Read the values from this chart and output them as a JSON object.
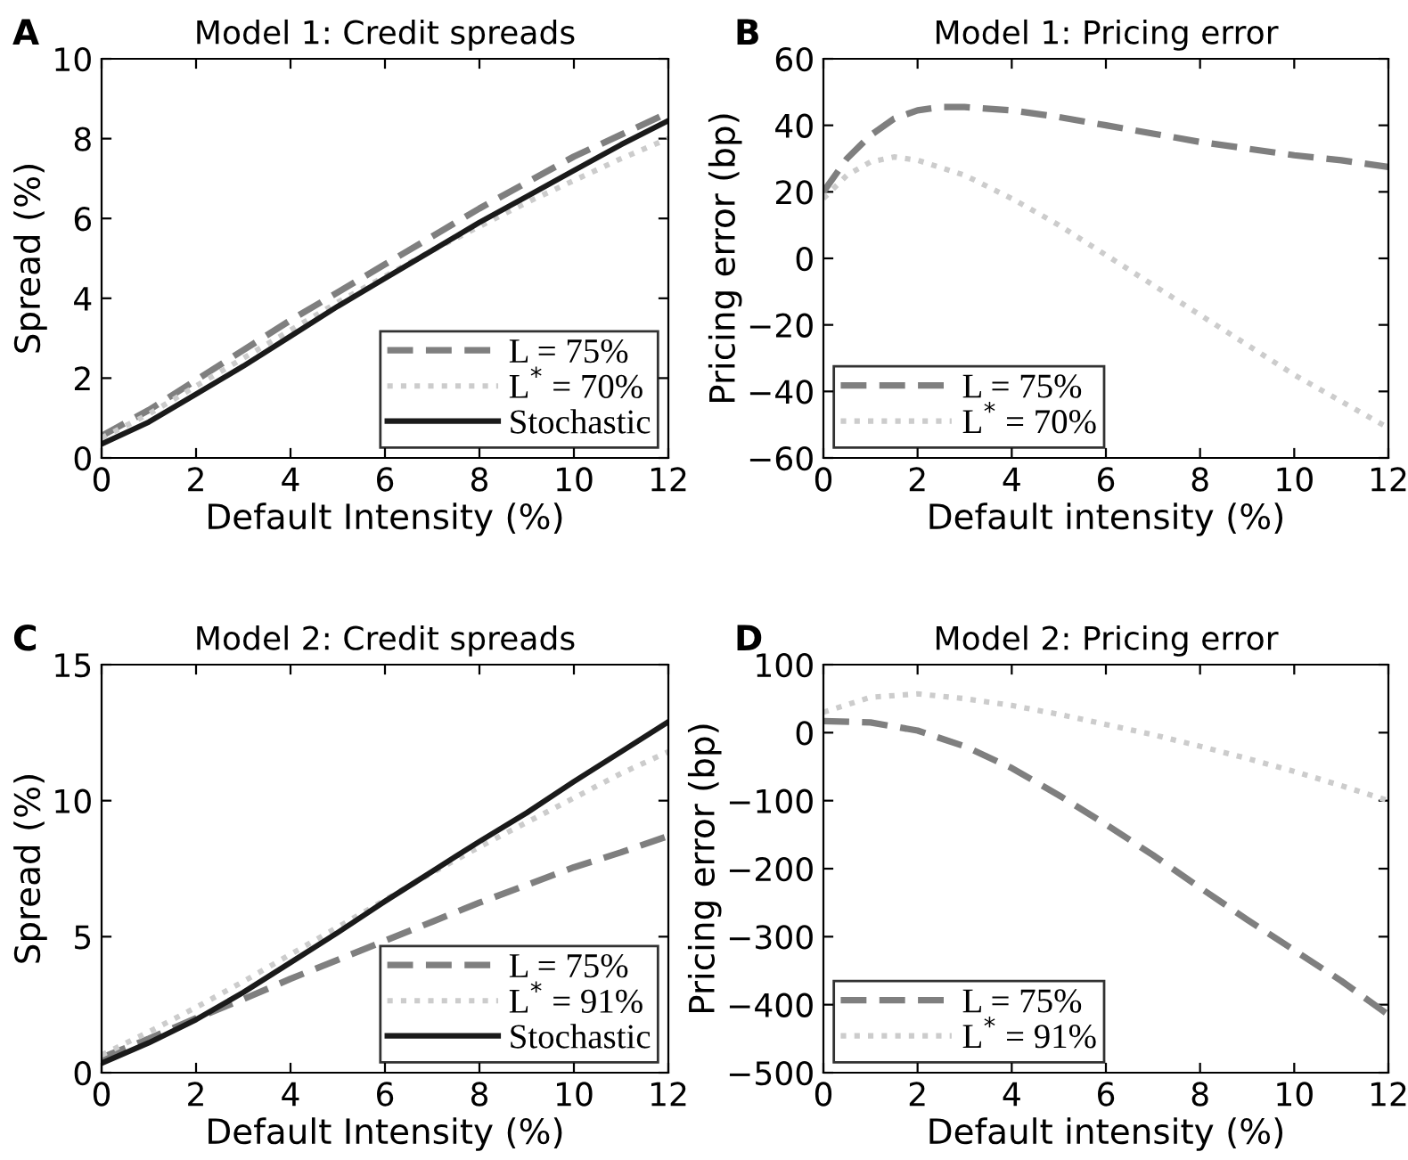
{
  "chart_data": [
    {
      "type": "line",
      "title": "Model 1: Credit spreads",
      "xlabel": "Default Intensity (%)",
      "ylabel": "Spread (%)",
      "annotations": [
        "A"
      ],
      "x": [
        0,
        1,
        2,
        3,
        4,
        5,
        6,
        7,
        8,
        9,
        10,
        11,
        12
      ],
      "xlim": [
        0,
        12
      ],
      "xticks": [
        0,
        2,
        4,
        6,
        8,
        10,
        12
      ],
      "ylim": [
        0,
        10
      ],
      "yticks": [
        0,
        2,
        4,
        6,
        8,
        10
      ],
      "grid": false,
      "legend": "bottom right",
      "series": [
        {
          "name": "L = 75%",
          "color": "#7f7f7f",
          "line_style": "dashed",
          "values": [
            0.55,
            1.2,
            1.95,
            2.7,
            3.45,
            4.15,
            4.85,
            5.55,
            6.25,
            6.9,
            7.55,
            8.1,
            8.65
          ]
        },
        {
          "name": "L$^{*}$ = 70%",
          "color": "#cccccc",
          "line_style": "dotted",
          "values": [
            0.5,
            1.1,
            1.8,
            2.5,
            3.2,
            3.9,
            4.55,
            5.2,
            5.8,
            6.4,
            6.95,
            7.5,
            8.0
          ]
        },
        {
          "name": "Stochastic",
          "color": "#1a1a1a",
          "line_style": "solid",
          "values": [
            0.35,
            0.9,
            1.6,
            2.3,
            3.05,
            3.8,
            4.5,
            5.2,
            5.9,
            6.55,
            7.2,
            7.85,
            8.45
          ]
        }
      ]
    },
    {
      "type": "line",
      "title": "Model 1: Pricing error",
      "xlabel": "Default intensity (%)",
      "ylabel": "Pricing error (bp)",
      "annotations": [
        "B"
      ],
      "xlim": [
        0,
        12
      ],
      "xticks": [
        0,
        2,
        4,
        6,
        8,
        10,
        12
      ],
      "ylim": [
        -60,
        60
      ],
      "yticks": [
        -60,
        -40,
        -20,
        0,
        20,
        40,
        60
      ],
      "grid": false,
      "legend": "bottom left",
      "series": [
        {
          "name": "L = 75%",
          "color": "#7f7f7f",
          "line_style": "dashed",
          "x": [
            0,
            0.5,
            1,
            1.5,
            2,
            2.5,
            3,
            4,
            5,
            6,
            7,
            8,
            9,
            10,
            11,
            12
          ],
          "values": [
            20,
            30,
            37,
            42,
            44.5,
            45.5,
            45.5,
            44.5,
            42.5,
            40,
            37.5,
            35,
            33,
            31,
            29.5,
            27.5
          ]
        },
        {
          "name": "L$^{*}$ = 70%",
          "color": "#cccccc",
          "line_style": "dotted",
          "x": [
            0,
            0.5,
            1,
            1.5,
            2,
            3,
            4,
            5,
            6,
            7,
            8,
            9,
            10,
            11,
            12
          ],
          "values": [
            18,
            25,
            29,
            30.5,
            29.5,
            25,
            18,
            10,
            1,
            -8,
            -17,
            -26,
            -35,
            -43,
            -51
          ]
        }
      ]
    },
    {
      "type": "line",
      "title": "Model 2: Credit spreads",
      "xlabel": "Default Intensity (%)",
      "ylabel": "Spread (%)",
      "annotations": [
        "C"
      ],
      "x": [
        0,
        1,
        2,
        3,
        4,
        5,
        6,
        7,
        8,
        9,
        10,
        11,
        12
      ],
      "xlim": [
        0,
        12
      ],
      "xticks": [
        0,
        2,
        4,
        6,
        8,
        10,
        12
      ],
      "ylim": [
        0,
        15
      ],
      "yticks": [
        0,
        5,
        10,
        15
      ],
      "grid": false,
      "legend": "bottom right",
      "series": [
        {
          "name": "L = 75%",
          "color": "#7f7f7f",
          "line_style": "dashed",
          "values": [
            0.55,
            1.25,
            2.0,
            2.7,
            3.45,
            4.15,
            4.85,
            5.55,
            6.25,
            6.9,
            7.55,
            8.1,
            8.7
          ]
        },
        {
          "name": "L$^{*}$ = 91%",
          "color": "#cccccc",
          "line_style": "dotted",
          "values": [
            0.65,
            1.5,
            2.4,
            3.35,
            4.35,
            5.35,
            6.35,
            7.35,
            8.3,
            9.2,
            10.1,
            11.0,
            11.8
          ]
        },
        {
          "name": "Stochastic",
          "color": "#1a1a1a",
          "line_style": "solid",
          "values": [
            0.35,
            1.1,
            1.95,
            2.95,
            4.05,
            5.15,
            6.3,
            7.4,
            8.5,
            9.55,
            10.7,
            11.8,
            12.9
          ]
        }
      ]
    },
    {
      "type": "line",
      "title": "Model 2: Pricing error",
      "xlabel": "Default intensity (%)",
      "ylabel": "Pricing error (bp)",
      "annotations": [
        "D"
      ],
      "x": [
        0,
        1,
        2,
        3,
        4,
        5,
        6,
        7,
        8,
        9,
        10,
        11,
        12
      ],
      "xlim": [
        0,
        12
      ],
      "xticks": [
        0,
        2,
        4,
        6,
        8,
        10,
        12
      ],
      "ylim": [
        -500,
        100
      ],
      "yticks": [
        -500,
        -400,
        -300,
        -200,
        -100,
        0,
        100
      ],
      "grid": false,
      "legend": "bottom left",
      "series": [
        {
          "name": "L = 75%",
          "color": "#7f7f7f",
          "line_style": "dashed",
          "values": [
            17,
            15,
            3,
            -20,
            -52,
            -92,
            -135,
            -180,
            -228,
            -275,
            -320,
            -365,
            -415
          ]
        },
        {
          "name": "L$^{*}$ = 91%",
          "color": "#cccccc",
          "line_style": "dotted",
          "values": [
            30,
            52,
            57,
            50,
            40,
            27,
            12,
            -3,
            -20,
            -38,
            -57,
            -78,
            -100
          ]
        }
      ]
    }
  ]
}
